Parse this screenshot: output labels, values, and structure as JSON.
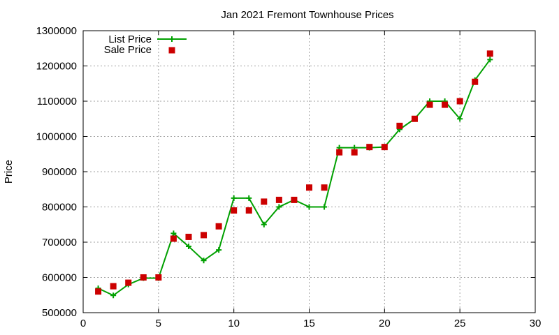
{
  "chart_data": {
    "type": "line",
    "title": "Jan 2021 Fremont Townhouse Prices",
    "xlabel": "",
    "ylabel": "Price",
    "xlim": [
      0,
      30
    ],
    "ylim": [
      500000,
      1300000
    ],
    "xticks": [
      0,
      5,
      10,
      15,
      20,
      25,
      30
    ],
    "yticks": [
      500000,
      600000,
      700000,
      800000,
      900000,
      1000000,
      1100000,
      1200000,
      1300000
    ],
    "grid": true,
    "legend_position": "top-left",
    "series": [
      {
        "name": "List Price",
        "style": "line-with-plus-markers",
        "color": "#00a000",
        "x": [
          1,
          2,
          3,
          4,
          5,
          6,
          7,
          8,
          9,
          10,
          11,
          12,
          13,
          14,
          15,
          16,
          17,
          18,
          19,
          20,
          21,
          22,
          23,
          24,
          25,
          26,
          27
        ],
        "values": [
          569000,
          549000,
          580000,
          598000,
          598000,
          725000,
          688000,
          648000,
          678000,
          825000,
          825000,
          750000,
          800000,
          820000,
          800000,
          800000,
          968000,
          968000,
          968000,
          970000,
          1020000,
          1050000,
          1100000,
          1100000,
          1050000,
          1160000,
          1218000
        ]
      },
      {
        "name": "Sale Price",
        "style": "square-markers",
        "color": "#cc0000",
        "x": [
          1,
          2,
          3,
          4,
          5,
          6,
          7,
          8,
          9,
          10,
          11,
          12,
          13,
          14,
          15,
          16,
          17,
          18,
          19,
          20,
          21,
          22,
          23,
          24,
          25,
          26,
          27
        ],
        "values": [
          560000,
          575000,
          585000,
          600000,
          600000,
          710000,
          715000,
          720000,
          745000,
          790000,
          790000,
          815000,
          820000,
          820000,
          855000,
          855000,
          955000,
          955000,
          970000,
          970000,
          1030000,
          1050000,
          1090000,
          1090000,
          1100000,
          1155000,
          1235000
        ]
      }
    ]
  }
}
